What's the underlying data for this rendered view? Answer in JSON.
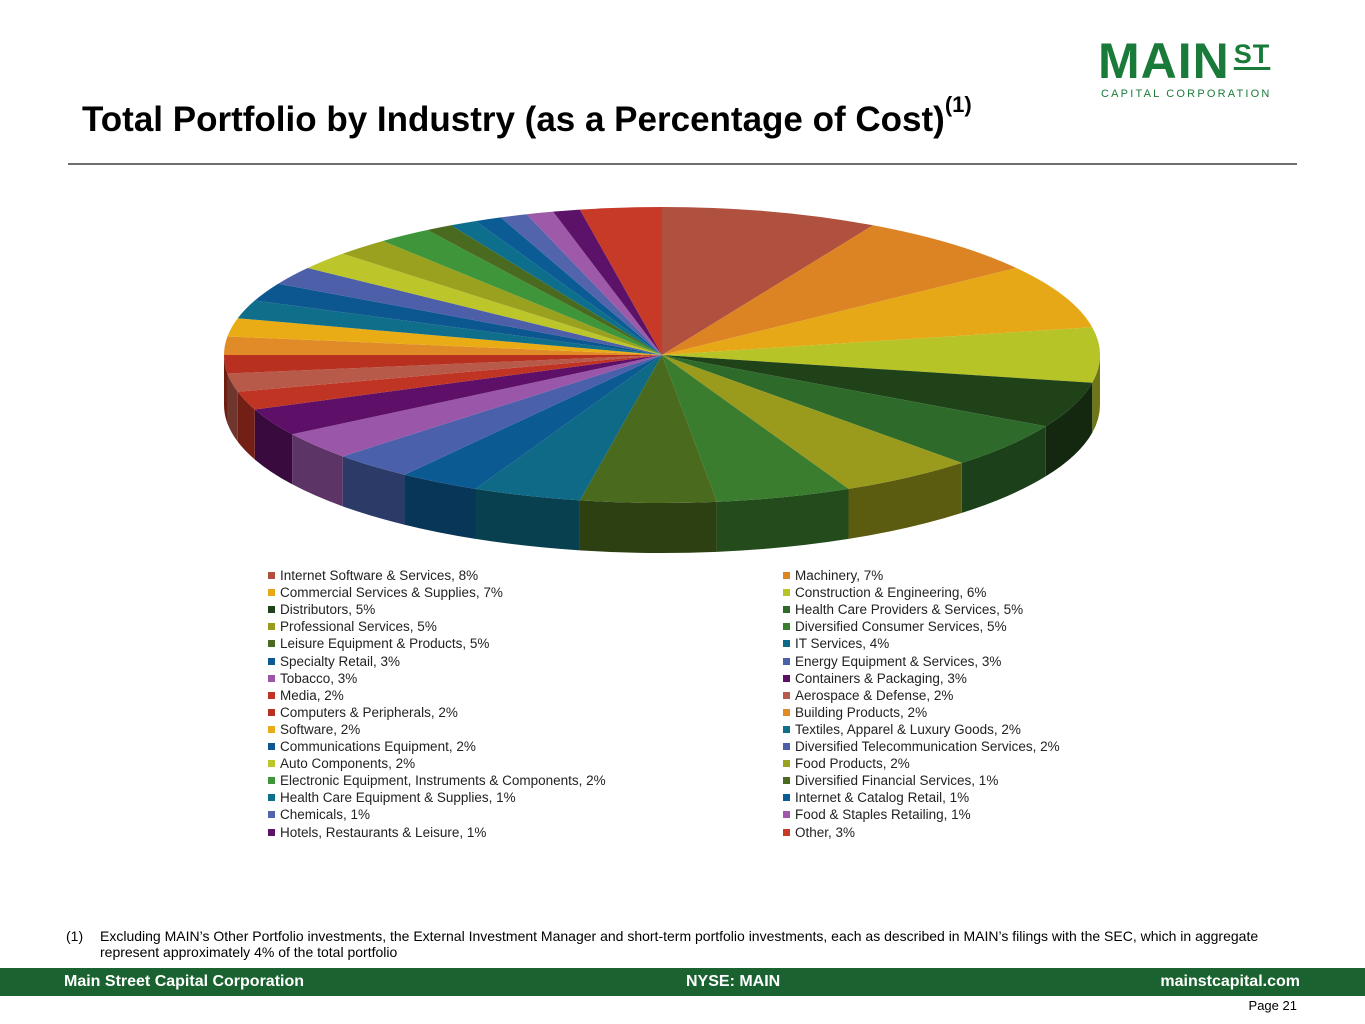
{
  "logo": {
    "main": "MAIN",
    "st": "ST",
    "sub": "CAPITAL CORPORATION"
  },
  "header": {
    "title": "Total Portfolio by Industry (as a Percentage of Cost)",
    "title_sup": "(1)"
  },
  "chart_data": {
    "type": "pie",
    "title": "Total Portfolio by Industry (as a Percentage of Cost)",
    "unit": "%",
    "slices": [
      {
        "label": "Internet Software & Services, 8%",
        "name": "Internet Software & Services",
        "value": 8,
        "color": "#b0503f"
      },
      {
        "label": "Machinery, 7%",
        "name": "Machinery",
        "value": 7,
        "color": "#dc8323"
      },
      {
        "label": "Commercial Services & Supplies, 7%",
        "name": "Commercial Services & Supplies",
        "value": 7,
        "color": "#e6a817"
      },
      {
        "label": "Construction & Engineering, 6%",
        "name": "Construction & Engineering",
        "value": 6,
        "color": "#b7c428"
      },
      {
        "label": "Distributors, 5%",
        "name": "Distributors",
        "value": 5,
        "color": "#1f4219"
      },
      {
        "label": "Health Care Providers & Services, 5%",
        "name": "Health Care Providers & Services",
        "value": 5,
        "color": "#2e6b2a"
      },
      {
        "label": "Professional Services, 5%",
        "name": "Professional Services",
        "value": 5,
        "color": "#9a9a1c"
      },
      {
        "label": "Diversified Consumer Services, 5%",
        "name": "Diversified Consumer Services",
        "value": 5,
        "color": "#3a7d2e"
      },
      {
        "label": "Leisure Equipment & Products, 5%",
        "name": "Leisure Equipment & Products",
        "value": 5,
        "color": "#4a6a1e"
      },
      {
        "label": "IT Services, 4%",
        "name": "IT Services",
        "value": 4,
        "color": "#0e6a86"
      },
      {
        "label": "Specialty Retail, 3%",
        "name": "Specialty Retail",
        "value": 3,
        "color": "#0b5a92"
      },
      {
        "label": "Energy Equipment & Services, 3%",
        "name": "Energy Equipment & Services",
        "value": 3,
        "color": "#4a60ab"
      },
      {
        "label": "Tobacco, 3%",
        "name": "Tobacco",
        "value": 3,
        "color": "#9a56a8"
      },
      {
        "label": "Containers & Packaging, 3%",
        "name": "Containers & Packaging",
        "value": 3,
        "color": "#5e1068"
      },
      {
        "label": "Media, 2%",
        "name": "Media",
        "value": 2,
        "color": "#c03424"
      },
      {
        "label": "Aerospace & Defense, 2%",
        "name": "Aerospace & Defense",
        "value": 2,
        "color": "#b85a4a"
      },
      {
        "label": "Computers & Peripherals, 2%",
        "name": "Computers & Peripherals",
        "value": 2,
        "color": "#b8301f"
      },
      {
        "label": "Building Products, 2%",
        "name": "Building Products",
        "value": 2,
        "color": "#e08a28"
      },
      {
        "label": "Software, 2%",
        "name": "Software",
        "value": 2,
        "color": "#e9ac15"
      },
      {
        "label": "Textiles, Apparel & Luxury Goods, 2%",
        "name": "Textiles, Apparel & Luxury Goods",
        "value": 2,
        "color": "#0f6e8a"
      },
      {
        "label": "Communications Equipment, 2%",
        "name": "Communications Equipment",
        "value": 2,
        "color": "#0d5790"
      },
      {
        "label": "Diversified Telecommunication Services, 2%",
        "name": "Diversified Telecommunication Services",
        "value": 2,
        "color": "#4d5fa8"
      },
      {
        "label": "Auto Components, 2%",
        "name": "Auto Components",
        "value": 2,
        "color": "#bcc52a"
      },
      {
        "label": "Food Products, 2%",
        "name": "Food Products",
        "value": 2,
        "color": "#9aa11f"
      },
      {
        "label": "Electronic Equipment, Instruments & Components, 2%",
        "name": "Electronic Equipment, Instruments & Components",
        "value": 2,
        "color": "#3f963a"
      },
      {
        "label": "Diversified Financial Services, 1%",
        "name": "Diversified Financial Services",
        "value": 1,
        "color": "#4a6b1f"
      },
      {
        "label": "Health Care Equipment & Supplies, 1%",
        "name": "Health Care Equipment & Supplies",
        "value": 1,
        "color": "#0d6f8c"
      },
      {
        "label": "Internet & Catalog Retail, 1%",
        "name": "Internet & Catalog Retail",
        "value": 1,
        "color": "#0b5c95"
      },
      {
        "label": "Chemicals, 1%",
        "name": "Chemicals",
        "value": 1,
        "color": "#5265ac"
      },
      {
        "label": "Food & Staples Retailing, 1%",
        "name": "Food & Staples Retailing",
        "value": 1,
        "color": "#9e5aa8"
      },
      {
        "label": "Hotels, Restaurants & Leisure, 1%",
        "name": "Hotels, Restaurants & Leisure",
        "value": 1,
        "color": "#5c1269"
      },
      {
        "label": "Other, 3%",
        "name": "Other",
        "value": 3,
        "color": "#c73a27"
      }
    ]
  },
  "footnote": {
    "mark": "(1)",
    "text": "Excluding MAIN’s Other Portfolio investments, the External Investment Manager and short-term portfolio investments, each as described in MAIN’s filings with the SEC, which in aggregate represent approximately 4% of the total portfolio"
  },
  "footer": {
    "left": "Main Street Capital Corporation",
    "center": "NYSE: MAIN",
    "right": "mainstcapital.com"
  },
  "page": {
    "label": "Page",
    "number": "21"
  }
}
